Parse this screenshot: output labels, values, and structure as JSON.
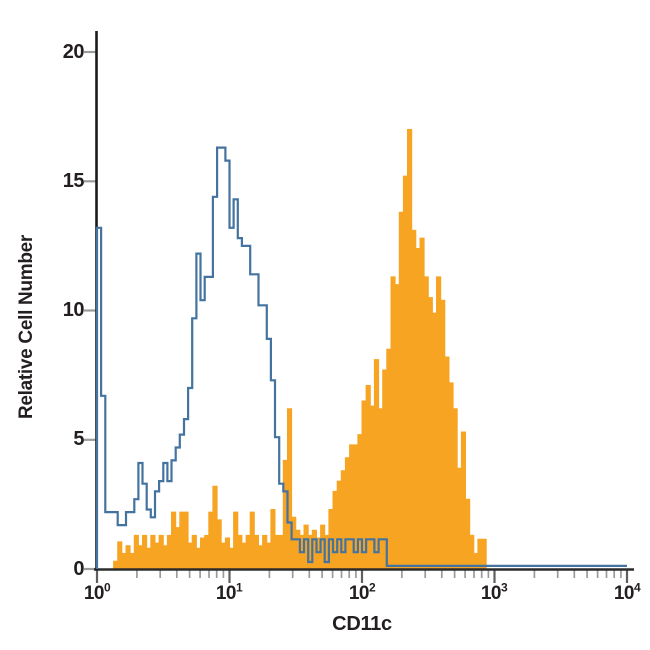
{
  "colors": {
    "open_histogram_stroke": "#44739f",
    "filled_histogram_fill": "#f7a423",
    "axis": "#2b2b2b",
    "tick_minor": "#9b9b9b",
    "tick_major": "#5f5f5f",
    "label": "#231f20",
    "background": "#ffffff"
  },
  "chart_data": {
    "type": "histogram",
    "title": "",
    "xlabel": "CD11c",
    "ylabel": "Relative Cell Number",
    "x_scale": "log10",
    "x_range": [
      1,
      10000
    ],
    "ylim": [
      0,
      21
    ],
    "grid": false,
    "legend": "none",
    "y_ticks": [
      0,
      5,
      10,
      15,
      20
    ],
    "y_tick_labels": [
      "0",
      "5",
      "10",
      "15",
      "20"
    ],
    "x_ticks": [
      {
        "base": "10",
        "exp": "0",
        "log": 0
      },
      {
        "base": "10",
        "exp": "1",
        "log": 1
      },
      {
        "base": "10",
        "exp": "2",
        "log": 2
      },
      {
        "base": "10",
        "exp": "3",
        "log": 3
      },
      {
        "base": "10",
        "exp": "4",
        "log": 4
      }
    ],
    "bins_per_decade": 32,
    "bins_start_log": 0,
    "series": [
      {
        "name": "orange-filled-histogram",
        "style": "filled",
        "color": "#f7a423",
        "peak": {
          "x_approx": 230,
          "height": 17
        },
        "heights": [
          0,
          0,
          0,
          0,
          0.3,
          1.05,
          0.6,
          0.9,
          0.6,
          1.3,
          0.9,
          1.3,
          0.8,
          1.3,
          1.0,
          1.3,
          0.9,
          1.3,
          2.2,
          1.6,
          2.2,
          2.2,
          1.0,
          1.3,
          0.8,
          1.2,
          1.3,
          2.2,
          3.2,
          1.9,
          1.0,
          1.2,
          0.8,
          2.2,
          1.3,
          1.0,
          1.3,
          2.2,
          1.3,
          0.9,
          1.3,
          1.0,
          2.3,
          1.3,
          1.3,
          4.2,
          6.2,
          2.0,
          1.5,
          1.3,
          1.7,
          1.3,
          1.5,
          1.2,
          1.7,
          1.3,
          2.3,
          3.0,
          3.4,
          3.8,
          4.3,
          4.8,
          4.8,
          5.2,
          6.5,
          7.1,
          6.3,
          8.1,
          6.2,
          7.7,
          8.5,
          11.3,
          11.0,
          13.8,
          15.2,
          17.0,
          13.1,
          12.4,
          12.8,
          11.3,
          10.5,
          9.9,
          11.3,
          10.4,
          8.2,
          7.2,
          6.2,
          3.9,
          5.3,
          2.7,
          1.3,
          0.6,
          1.15,
          1.15,
          0,
          0,
          0,
          0,
          0,
          0,
          0,
          0,
          0,
          0,
          0,
          0,
          0,
          0,
          0,
          0,
          0,
          0,
          0,
          0,
          0,
          0,
          0,
          0,
          0,
          0,
          0,
          0,
          0,
          0,
          0,
          0,
          0,
          0
        ]
      },
      {
        "name": "blue-open-histogram",
        "style": "open",
        "color": "#44739f",
        "peak": {
          "x_approx": 9,
          "height": 16.3
        },
        "heights": [
          13.2,
          6.7,
          2.2,
          2.2,
          2.2,
          1.7,
          1.7,
          2.2,
          2.2,
          2.7,
          4.1,
          3.3,
          2.3,
          2.0,
          3.0,
          3.4,
          4.1,
          3.4,
          4.2,
          4.7,
          5.2,
          5.8,
          7.0,
          9.7,
          12.2,
          10.4,
          11.3,
          11.3,
          14.4,
          16.3,
          16.3,
          15.8,
          13.2,
          14.3,
          12.8,
          12.5,
          12.5,
          11.4,
          11.4,
          10.2,
          10.2,
          8.9,
          7.3,
          5.1,
          3.3,
          3.0,
          1.8,
          1.15,
          1.15,
          0.65,
          1.15,
          0.27,
          1.15,
          0.65,
          1.15,
          0.27,
          1.15,
          0.65,
          1.15,
          0.65,
          1.15,
          1.15,
          0.65,
          1.15,
          0.65,
          1.15,
          1.15,
          0.65,
          1.15,
          1.15,
          0.12,
          0.12,
          0.12,
          0.12,
          0.12,
          0.12,
          0.12,
          0.12,
          0.12,
          0.12,
          0.12,
          0.12,
          0.12,
          0.12,
          0.12,
          0.12,
          0.12,
          0.12,
          0.12,
          0.12,
          0.12,
          0.12,
          0.12,
          0.12,
          0.12,
          0.12,
          0.12,
          0.12,
          0.12,
          0.12,
          0.12,
          0.12,
          0.12,
          0.12,
          0.12,
          0.12,
          0.12,
          0.12,
          0.12,
          0.12,
          0.12,
          0.12,
          0.12,
          0.12,
          0.12,
          0.12,
          0.12,
          0.12,
          0.12,
          0.12,
          0.12,
          0.12,
          0.12,
          0.12,
          0.12,
          0.12,
          0.12,
          0.12
        ]
      }
    ]
  }
}
